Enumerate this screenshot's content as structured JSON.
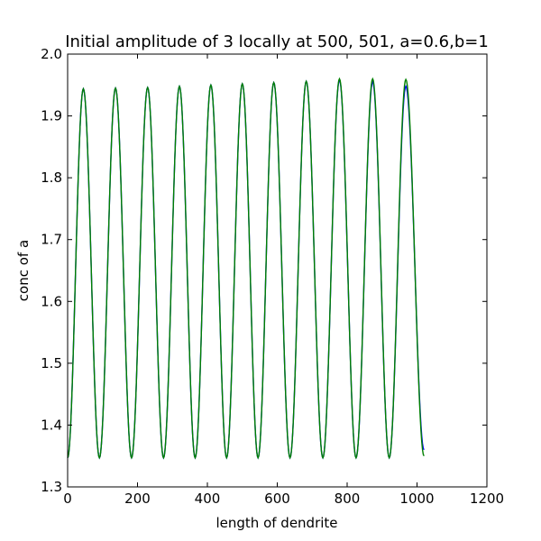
{
  "chart_data": {
    "type": "line",
    "title": "Initial amplitude of 3 locally at 500, 501, a=0.6,b=1",
    "xlabel": "length of dendrite",
    "ylabel": "conc of a",
    "xlim": [
      0,
      1200
    ],
    "ylim": [
      1.3,
      2.0
    ],
    "xticks": [
      0,
      200,
      400,
      600,
      800,
      1000,
      1200
    ],
    "xtick_labels": [
      "0",
      "200",
      "400",
      "600",
      "800",
      "1000",
      "1200"
    ],
    "yticks": [
      1.3,
      1.4,
      1.5,
      1.6,
      1.7,
      1.8,
      1.9,
      2.0
    ],
    "ytick_labels": [
      "1.3",
      "1.4",
      "1.5",
      "1.6",
      "1.7",
      "1.8",
      "1.9",
      "2.0"
    ],
    "grid": false,
    "legend": "none",
    "series": [
      {
        "color": "#0000ff",
        "x_range": [
          0,
          1020
        ],
        "baseline": 1.347,
        "peaks": [
          {
            "x": 45,
            "y": 1.944
          },
          {
            "x": 137,
            "y": 1.945
          },
          {
            "x": 229,
            "y": 1.946
          },
          {
            "x": 320,
            "y": 1.948
          },
          {
            "x": 410,
            "y": 1.95
          },
          {
            "x": 500,
            "y": 1.952
          },
          {
            "x": 590,
            "y": 1.954
          },
          {
            "x": 683,
            "y": 1.956
          },
          {
            "x": 778,
            "y": 1.958
          },
          {
            "x": 873,
            "y": 1.955
          },
          {
            "x": 968,
            "y": 1.948
          }
        ],
        "end_value": 1.36
      },
      {
        "color": "#008000",
        "x_range": [
          0,
          1020
        ],
        "baseline": 1.347,
        "peaks": [
          {
            "x": 45,
            "y": 1.944
          },
          {
            "x": 137,
            "y": 1.945
          },
          {
            "x": 229,
            "y": 1.946
          },
          {
            "x": 320,
            "y": 1.948
          },
          {
            "x": 410,
            "y": 1.95
          },
          {
            "x": 500,
            "y": 1.952
          },
          {
            "x": 590,
            "y": 1.954
          },
          {
            "x": 683,
            "y": 1.956
          },
          {
            "x": 778,
            "y": 1.96
          },
          {
            "x": 873,
            "y": 1.96
          },
          {
            "x": 968,
            "y": 1.959
          }
        ],
        "end_value": 1.35
      }
    ]
  }
}
